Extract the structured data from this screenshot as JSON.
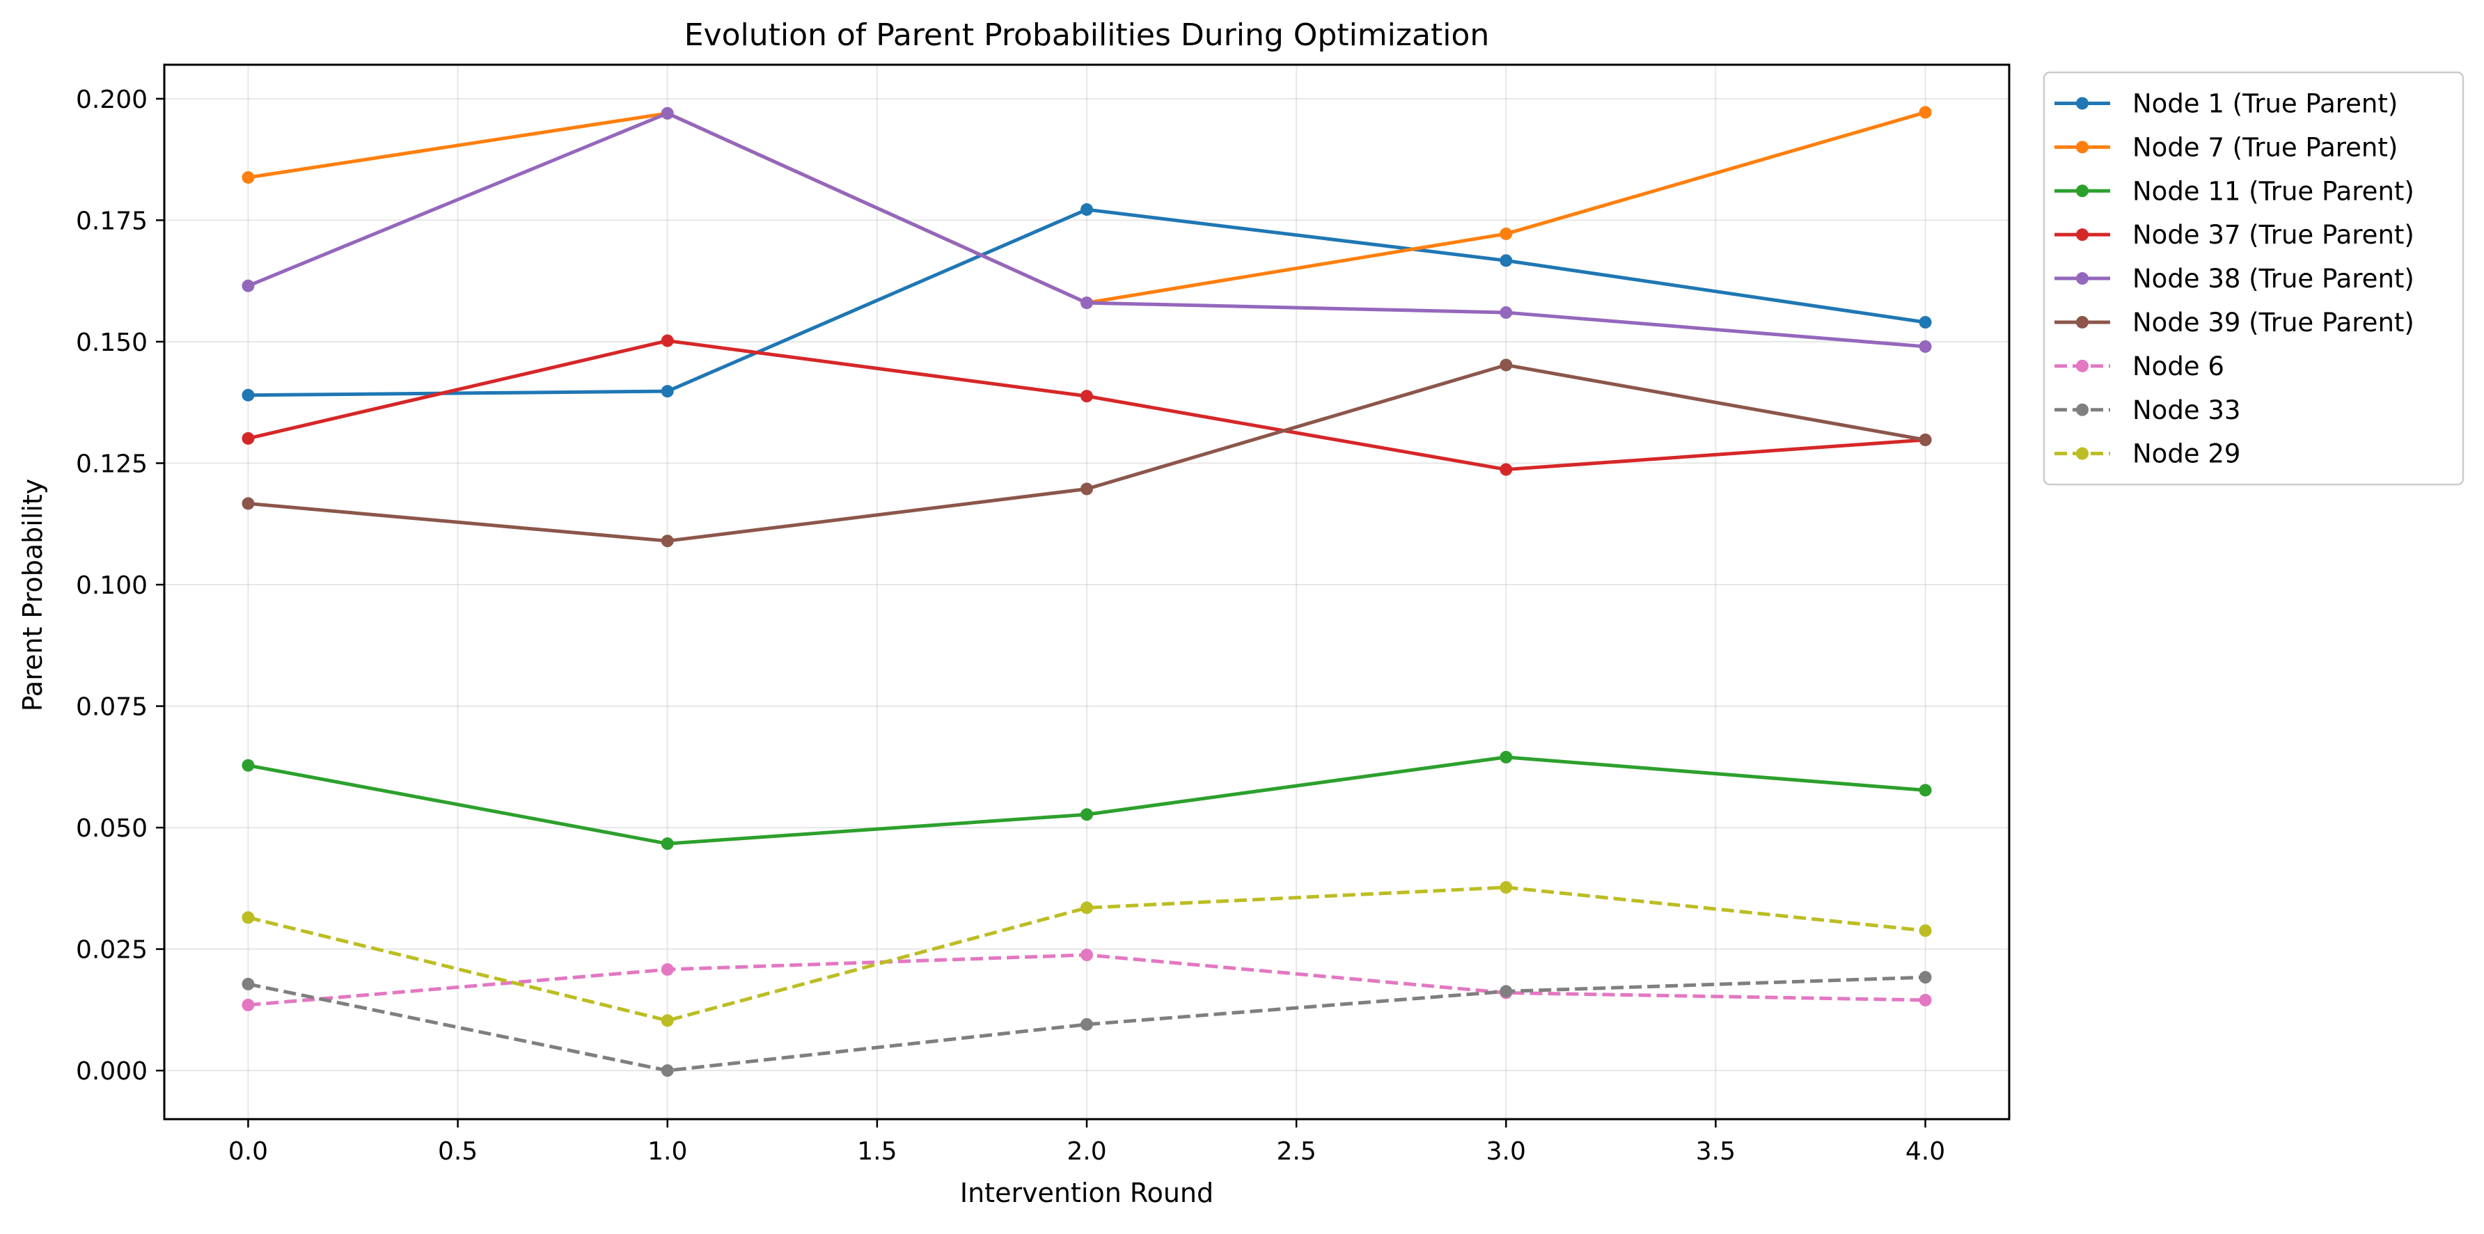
{
  "chart_data": {
    "type": "line",
    "title": "Evolution of Parent Probabilities During Optimization",
    "xlabel": "Intervention Round",
    "ylabel": "Parent Probability",
    "x": [
      0,
      1,
      2,
      3,
      4
    ],
    "xlim": [
      -0.2,
      4.2
    ],
    "ylim": [
      -0.01,
      0.207
    ],
    "xticks": [
      "0.0",
      "0.5",
      "1.0",
      "1.5",
      "2.0",
      "2.5",
      "3.0",
      "3.5",
      "4.0"
    ],
    "yticks": [
      "0.000",
      "0.025",
      "0.050",
      "0.075",
      "0.100",
      "0.125",
      "0.150",
      "0.175",
      "0.200"
    ],
    "grid": true,
    "legend_position": "outside upper right",
    "series": [
      {
        "name": "Node 1 (True Parent)",
        "color": "#1f77b4",
        "style": "solid",
        "values": [
          0.139,
          0.1398,
          0.1772,
          0.1667,
          0.154
        ]
      },
      {
        "name": "Node 7 (True Parent)",
        "color": "#ff7f0e",
        "style": "solid",
        "values": [
          0.1838,
          0.197,
          0.158,
          0.1722,
          0.1972
        ]
      },
      {
        "name": "Node 11 (True Parent)",
        "color": "#2ca02c",
        "style": "solid",
        "values": [
          0.0628,
          0.0467,
          0.0527,
          0.0645,
          0.0577
        ]
      },
      {
        "name": "Node 37 (True Parent)",
        "color": "#d62728",
        "style": "solid",
        "values": [
          0.1301,
          0.1502,
          0.1388,
          0.1237,
          0.1298
        ]
      },
      {
        "name": "Node 38 (True Parent)",
        "color": "#9467bd",
        "style": "solid",
        "values": [
          0.1615,
          0.197,
          0.158,
          0.156,
          0.149
        ]
      },
      {
        "name": "Node 39 (True Parent)",
        "color": "#8c564b",
        "style": "solid",
        "values": [
          0.1167,
          0.109,
          0.1197,
          0.1452,
          0.1298
        ]
      },
      {
        "name": "Node 6",
        "color": "#e377c2",
        "style": "dashed",
        "values": [
          0.0135,
          0.0208,
          0.0238,
          0.016,
          0.0145
        ]
      },
      {
        "name": "Node 33",
        "color": "#7f7f7f",
        "style": "dashed",
        "values": [
          0.0178,
          0.0,
          0.0095,
          0.0163,
          0.0192
        ]
      },
      {
        "name": "Node 29",
        "color": "#bcbd22",
        "style": "dashed",
        "values": [
          0.0315,
          0.0103,
          0.0335,
          0.0377,
          0.0288
        ]
      }
    ]
  }
}
